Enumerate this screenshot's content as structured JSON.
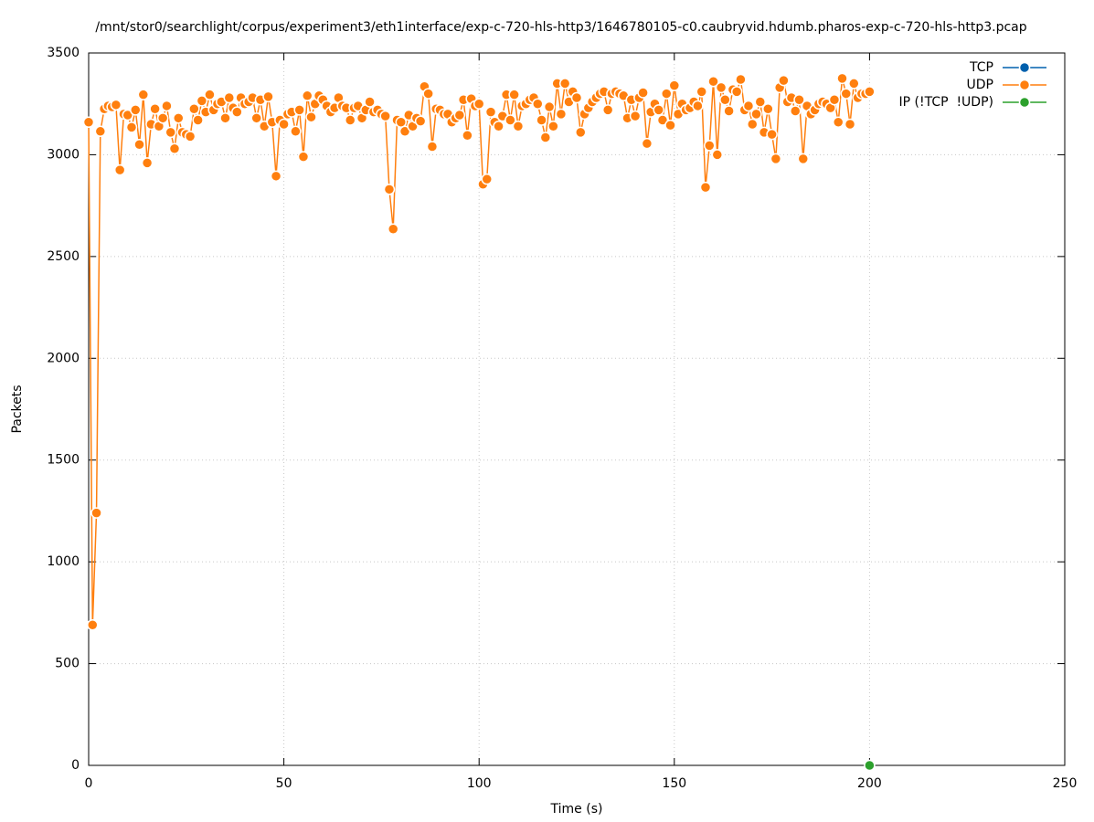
{
  "chart_data": {
    "type": "line",
    "title": "/mnt/stor0/searchlight/corpus/experiment3/eth1interface/exp-c-720-hls-http3/1646780105-c0.caubryvid.hdumb.pharos-exp-c-720-hls-http3.pcap",
    "x_label": "Time (s)",
    "y_label": "Packets",
    "xlim": [
      0,
      250
    ],
    "xticks": [
      0,
      50,
      100,
      150,
      200,
      250
    ],
    "ylim": [
      0,
      3500
    ],
    "yticks": [
      0,
      500,
      1000,
      1500,
      2000,
      2500,
      3000,
      3500
    ],
    "grid": true,
    "legend": "top-right",
    "series": [
      {
        "name": "TCP",
        "color": "#0060ad",
        "x": [],
        "values": []
      },
      {
        "name": "UDP",
        "color": "#ff7f0e",
        "x": [
          0,
          1,
          2,
          3,
          4,
          5,
          6,
          7,
          8,
          9,
          10,
          11,
          12,
          13,
          14,
          15,
          16,
          17,
          18,
          19,
          20,
          21,
          22,
          23,
          24,
          25,
          26,
          27,
          28,
          29,
          30,
          31,
          32,
          33,
          34,
          35,
          36,
          37,
          38,
          39,
          40,
          41,
          42,
          43,
          44,
          45,
          46,
          47,
          48,
          49,
          50,
          51,
          52,
          53,
          54,
          55,
          56,
          57,
          58,
          59,
          60,
          61,
          62,
          63,
          64,
          65,
          66,
          67,
          68,
          69,
          70,
          71,
          72,
          73,
          74,
          75,
          76,
          77,
          78,
          79,
          80,
          81,
          82,
          83,
          84,
          85,
          86,
          87,
          88,
          89,
          90,
          91,
          92,
          93,
          94,
          95,
          96,
          97,
          98,
          99,
          100,
          101,
          102,
          103,
          104,
          105,
          106,
          107,
          108,
          109,
          110,
          111,
          112,
          113,
          114,
          115,
          116,
          117,
          118,
          119,
          120,
          121,
          122,
          123,
          124,
          125,
          126,
          127,
          128,
          129,
          130,
          131,
          132,
          133,
          134,
          135,
          136,
          137,
          138,
          139,
          140,
          141,
          142,
          143,
          144,
          145,
          146,
          147,
          148,
          149,
          150,
          151,
          152,
          153,
          154,
          155,
          156,
          157,
          158,
          159,
          160,
          161,
          162,
          163,
          164,
          165,
          166,
          167,
          168,
          169,
          170,
          171,
          172,
          173,
          174,
          175,
          176,
          177,
          178,
          179,
          180,
          181,
          182,
          183,
          184,
          185,
          186,
          187,
          188,
          189,
          190,
          191,
          192,
          193,
          194,
          195,
          196,
          197,
          198,
          199,
          200
        ],
        "values": [
          3160,
          690,
          1240,
          3115,
          3225,
          3240,
          3235,
          3245,
          2925,
          3200,
          3195,
          3135,
          3220,
          3050,
          3295,
          2960,
          3150,
          3225,
          3140,
          3180,
          3240,
          3110,
          3030,
          3180,
          3110,
          3100,
          3090,
          3225,
          3170,
          3265,
          3210,
          3295,
          3220,
          3250,
          3260,
          3180,
          3280,
          3230,
          3210,
          3280,
          3250,
          3260,
          3280,
          3180,
          3270,
          3140,
          3285,
          3160,
          2895,
          3170,
          3150,
          3200,
          3210,
          3115,
          3220,
          2990,
          3290,
          3185,
          3250,
          3290,
          3270,
          3240,
          3210,
          3230,
          3280,
          3240,
          3230,
          3170,
          3230,
          3240,
          3180,
          3220,
          3260,
          3210,
          3220,
          3200,
          3190,
          2830,
          2635,
          3170,
          3160,
          3115,
          3195,
          3140,
          3180,
          3165,
          3335,
          3300,
          3040,
          3225,
          3220,
          3200,
          3200,
          3160,
          3180,
          3195,
          3270,
          3095,
          3275,
          3240,
          3250,
          2855,
          2880,
          3210,
          3160,
          3140,
          3190,
          3295,
          3170,
          3295,
          3140,
          3240,
          3250,
          3270,
          3280,
          3250,
          3170,
          3085,
          3235,
          3140,
          3350,
          3200,
          3350,
          3260,
          3310,
          3280,
          3110,
          3200,
          3230,
          3260,
          3280,
          3300,
          3310,
          3220,
          3300,
          3310,
          3300,
          3290,
          3180,
          3270,
          3190,
          3280,
          3305,
          3055,
          3210,
          3250,
          3220,
          3170,
          3300,
          3145,
          3340,
          3200,
          3250,
          3220,
          3230,
          3260,
          3240,
          3310,
          2840,
          3045,
          3360,
          3000,
          3330,
          3270,
          3215,
          3320,
          3310,
          3370,
          3220,
          3240,
          3150,
          3200,
          3260,
          3110,
          3225,
          3100,
          2980,
          3330,
          3365,
          3260,
          3280,
          3215,
          3270,
          2980,
          3240,
          3200,
          3220,
          3250,
          3260,
          3250,
          3230,
          3270,
          3160,
          3375,
          3300,
          3150,
          3350,
          3280,
          3300,
          3300,
          3310
        ]
      },
      {
        "name": "IP (!TCP  !UDP)",
        "color": "#2ca02c",
        "x": [
          200
        ],
        "values": [
          0
        ]
      }
    ]
  }
}
